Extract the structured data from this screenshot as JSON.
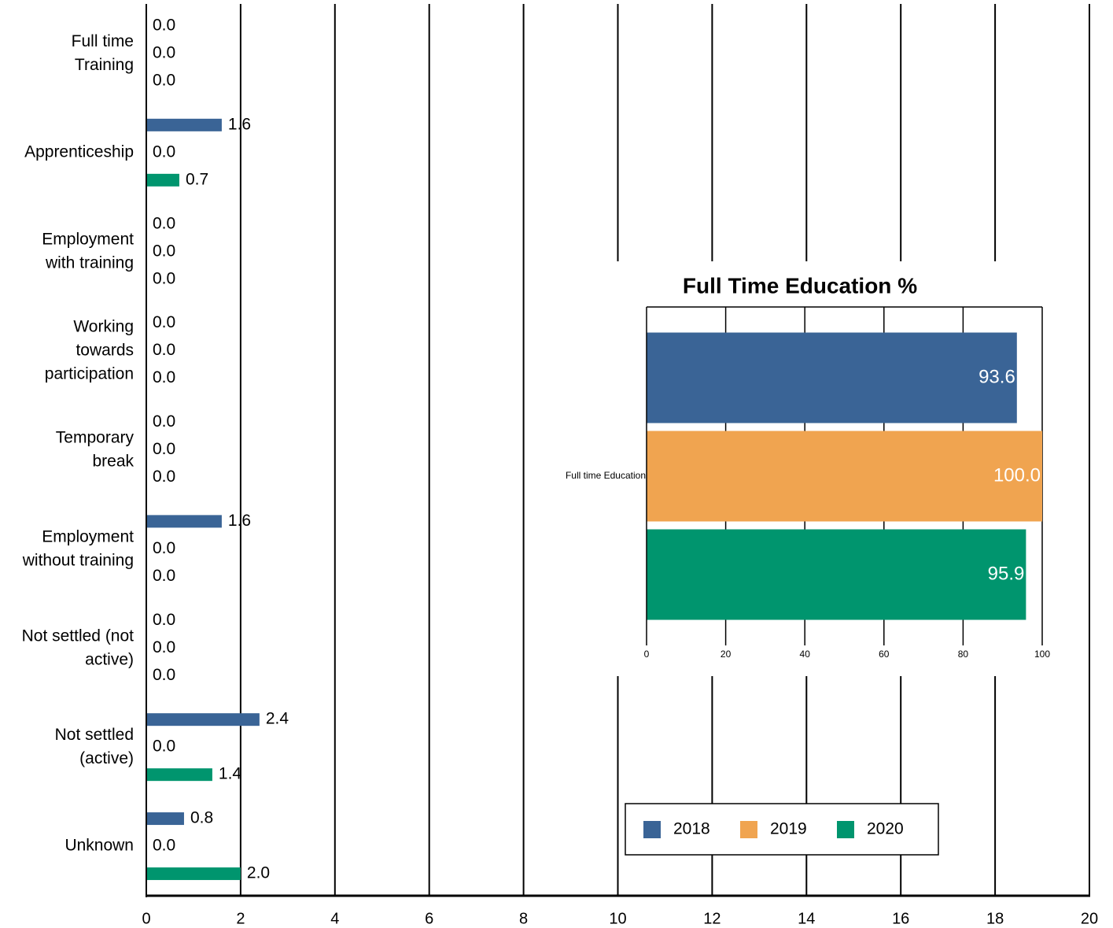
{
  "chart_data": [
    {
      "type": "barh",
      "categories": [
        "Full time\nTraining",
        "Apprenticeship",
        "Employment\nwith training",
        "Working\ntowards\nparticipation",
        "Temporary\nbreak",
        "Employment\nwithout training",
        "Not settled (not\nactive)",
        "Not settled\n(active)",
        "Unknown"
      ],
      "series": [
        {
          "name": "2018",
          "color": "#3a6496",
          "values": [
            0,
            1.6,
            0,
            0,
            0,
            1.6,
            0,
            2.4,
            0.8
          ],
          "value_labels": [
            "0.0",
            "1.6",
            "0.0",
            "0.0",
            "0.0",
            "1.6",
            "0.0",
            "2.4",
            "0.8"
          ]
        },
        {
          "name": "2019",
          "color": "#f0a450",
          "values": [
            0,
            0,
            0,
            0,
            0,
            0,
            0,
            0,
            0
          ],
          "value_labels": [
            "0.0",
            "0.0",
            "0.0",
            "0.0",
            "0.0",
            "0.0",
            "0.0",
            "0.0",
            "0.0"
          ]
        },
        {
          "name": "2020",
          "color": "#00956e",
          "values": [
            0,
            0.7,
            0,
            0,
            0,
            0,
            0,
            1.4,
            2.0
          ],
          "value_labels": [
            "0.0",
            "0.7",
            "0.0",
            "0.0",
            "0.0",
            "0.0",
            "0.0",
            "1.4",
            "2.0"
          ]
        }
      ],
      "xlim": [
        0,
        20
      ],
      "xticks": [
        0,
        2,
        4,
        6,
        8,
        10,
        12,
        14,
        16,
        18,
        20
      ],
      "grid": true
    },
    {
      "type": "barh",
      "title": "Full Time Education %",
      "categories": [
        "Full time Education"
      ],
      "series": [
        {
          "color": "#3a6496",
          "values": [
            93.6
          ],
          "value_labels": [
            "93.6"
          ]
        },
        {
          "color": "#f0a450",
          "values": [
            100.0
          ],
          "value_labels": [
            "100.0"
          ]
        },
        {
          "color": "#00956e",
          "values": [
            95.9
          ],
          "value_labels": [
            "95.9"
          ]
        }
      ],
      "xlim": [
        0,
        100
      ],
      "xticks": [
        0,
        20,
        40,
        60,
        80,
        100
      ],
      "grid": true
    }
  ]
}
